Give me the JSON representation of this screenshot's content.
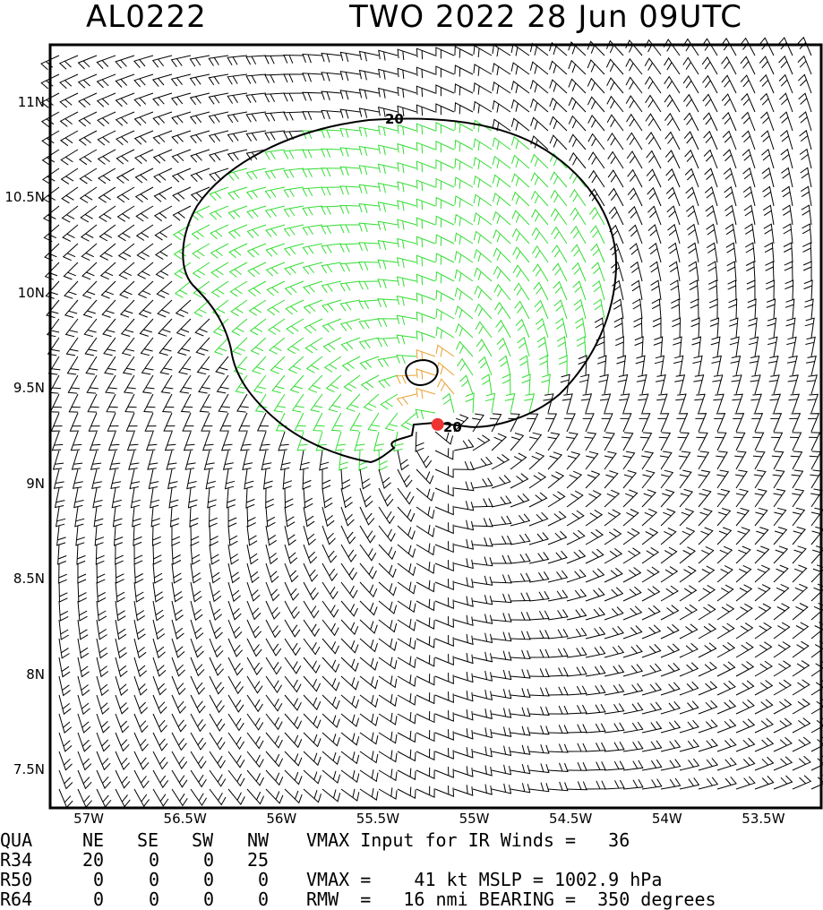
{
  "header": {
    "storm_id": "AL0222",
    "title": "TWO 2022 28 Jun 09UTC"
  },
  "map": {
    "lon_range": [
      -57.2,
      -53.2
    ],
    "lat_range": [
      7.3,
      11.3
    ],
    "y_ticks": [
      "11N",
      "10.5N",
      "10N",
      "9.5N",
      "9N",
      "8.5N",
      "8N",
      "7.5N"
    ],
    "x_ticks": [
      "57W",
      "56.5W",
      "56W",
      "55.5W",
      "55W",
      "54.5W",
      "54W",
      "53.5W"
    ],
    "contour_label": "20",
    "center": {
      "lon": -55.19,
      "lat": 9.31
    },
    "colors": {
      "barb_default": "#000000",
      "barb_34kt": "#33dd33",
      "barb_50kt": "#e8a030",
      "center": "#ee3333",
      "contour": "#000000"
    }
  },
  "table": {
    "col_headers": [
      "QUA",
      "NE",
      "SE",
      "SW",
      "NW"
    ],
    "rows": [
      {
        "label": "R34",
        "values": [
          "20",
          "0",
          "0",
          "25"
        ]
      },
      {
        "label": "R50",
        "values": [
          "0",
          "0",
          "0",
          "0"
        ]
      },
      {
        "label": "R64",
        "values": [
          "0",
          "0",
          "0",
          "0"
        ]
      }
    ]
  },
  "stats": {
    "line1": "VMAX Input for IR Winds =   36",
    "line2": "VMAX =    41 kt MSLP = 1002.9 hPa",
    "line3": "RMW  =   16 nmi BEARING =  350 degrees"
  }
}
